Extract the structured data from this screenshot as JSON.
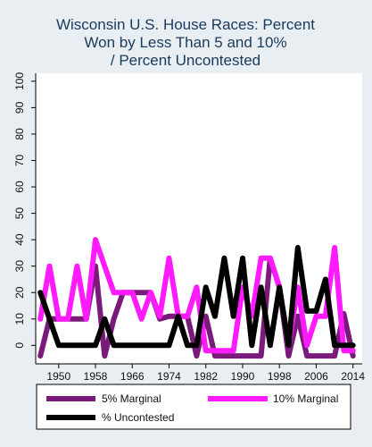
{
  "chart_data": {
    "type": "line",
    "title": [
      "Wisconsin U.S. House Races: Percent",
      "Won by Less Than 5 and 10%",
      "/ Percent Uncontested"
    ],
    "xlabel": "",
    "ylabel": "",
    "xlim": [
      1945,
      2016
    ],
    "ylim": [
      -7,
      103
    ],
    "xticks": [
      1950,
      1958,
      1966,
      1974,
      1982,
      1990,
      1998,
      2006,
      2014
    ],
    "yticks": [
      0,
      10,
      20,
      30,
      40,
      50,
      60,
      70,
      80,
      90,
      100
    ],
    "grid": false,
    "legend_position": "bottom",
    "series": [
      {
        "name": "5% Marginal",
        "color": "#7a1a7a",
        "x": [
          1946,
          1948,
          1950,
          1952,
          1954,
          1956,
          1958,
          1960,
          1962,
          1964,
          1966,
          1968,
          1970,
          1972,
          1974,
          1976,
          1978,
          1980,
          1982,
          1984,
          1986,
          1988,
          1990,
          1992,
          1994,
          1996,
          1998,
          2000,
          2002,
          2004,
          2006,
          2008,
          2010,
          2012,
          2014
        ],
        "y": [
          -4,
          10,
          10,
          10,
          10,
          10,
          30,
          -4,
          10,
          20,
          20,
          20,
          20,
          10,
          11,
          11,
          11,
          -4,
          11,
          -4,
          -4,
          -4,
          -4,
          -4,
          -4,
          33,
          22,
          -4,
          11,
          -4,
          -4,
          -4,
          -4,
          12,
          -4
        ]
      },
      {
        "name": "10% Marginal",
        "color": "#ff1aff",
        "x": [
          1946,
          1948,
          1950,
          1952,
          1954,
          1956,
          1958,
          1960,
          1962,
          1964,
          1966,
          1968,
          1970,
          1972,
          1974,
          1976,
          1978,
          1980,
          1982,
          1984,
          1986,
          1988,
          1990,
          1992,
          1994,
          1996,
          1998,
          2000,
          2002,
          2004,
          2006,
          2008,
          2010,
          2012,
          2014
        ],
        "y": [
          10,
          30,
          10,
          10,
          30,
          10,
          40,
          30,
          20,
          20,
          20,
          10,
          20,
          11,
          33,
          11,
          11,
          22,
          -2,
          -2,
          -2,
          -2,
          22,
          11,
          33,
          33,
          22,
          0,
          22,
          0,
          11,
          11,
          37,
          -2,
          -2
        ]
      },
      {
        "name": "% Uncontested",
        "color": "#000000",
        "x": [
          1946,
          1948,
          1950,
          1952,
          1954,
          1956,
          1958,
          1960,
          1962,
          1964,
          1966,
          1968,
          1970,
          1972,
          1974,
          1976,
          1978,
          1980,
          1982,
          1984,
          1986,
          1988,
          1990,
          1992,
          1994,
          1996,
          1998,
          2000,
          2002,
          2004,
          2006,
          2008,
          2010,
          2012,
          2014
        ],
        "y": [
          20,
          10,
          0,
          0,
          0,
          0,
          0,
          10,
          0,
          0,
          0,
          0,
          0,
          0,
          0,
          11,
          0,
          0,
          22,
          11,
          33,
          11,
          33,
          0,
          22,
          0,
          22,
          0,
          37,
          13,
          13,
          25,
          0,
          0,
          0
        ]
      }
    ]
  }
}
